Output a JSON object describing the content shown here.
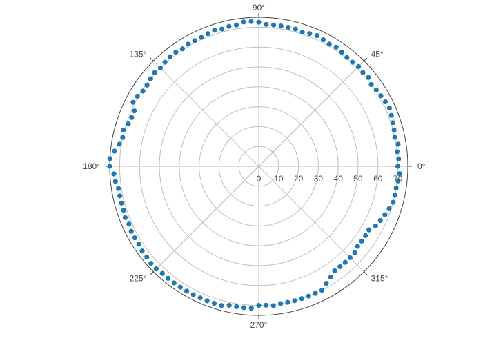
{
  "chart_data": {
    "type": "scatter",
    "projection": "polar",
    "title": "",
    "radial_axis": {
      "range": [
        0,
        75
      ],
      "tick_values": [
        0,
        10,
        20,
        30,
        40,
        50,
        60,
        70
      ],
      "tick_labels": [
        "0",
        "10",
        "20",
        "30",
        "40",
        "50",
        "60",
        "70"
      ],
      "angle_deg": 0
    },
    "angular_axis": {
      "tick_values_deg": [
        0,
        45,
        90,
        135,
        180,
        225,
        270,
        315
      ],
      "tick_labels": [
        "0°",
        "45°",
        "90°",
        "135°",
        "180°",
        "225°",
        "270°",
        "315°"
      ],
      "direction": "counterclockwise",
      "rotation_deg": 0
    },
    "grid": true,
    "legend": "none",
    "marker_color": "#1f77b4",
    "series": [
      {
        "points": [
          [
            0,
            70
          ],
          [
            3,
            70.5
          ],
          [
            6,
            70
          ],
          [
            9,
            71
          ],
          [
            12,
            70
          ],
          [
            15,
            70.5
          ],
          [
            18,
            71
          ],
          [
            21,
            71.5
          ],
          [
            24,
            72
          ],
          [
            27,
            71.5
          ],
          [
            30,
            71
          ],
          [
            33,
            70.5
          ],
          [
            36,
            70
          ],
          [
            39,
            71
          ],
          [
            42,
            70.5
          ],
          [
            45,
            71
          ],
          [
            48,
            70.5
          ],
          [
            51,
            70.5
          ],
          [
            54,
            71
          ],
          [
            57,
            71.5
          ],
          [
            60,
            71
          ],
          [
            63,
            71.5
          ],
          [
            66,
            72
          ],
          [
            69,
            71.5
          ],
          [
            72,
            71
          ],
          [
            75,
            71.5
          ],
          [
            78,
            71.5
          ],
          [
            81,
            71.5
          ],
          [
            84,
            71.5
          ],
          [
            87,
            71.5
          ],
          [
            90,
            72.5
          ],
          [
            93,
            73
          ],
          [
            96,
            73
          ],
          [
            99,
            72
          ],
          [
            102,
            72
          ],
          [
            105,
            71.5
          ],
          [
            108,
            72
          ],
          [
            111,
            71.5
          ],
          [
            114,
            71
          ],
          [
            117,
            71
          ],
          [
            120,
            71
          ],
          [
            123,
            70.5
          ],
          [
            126,
            71
          ],
          [
            129,
            71
          ],
          [
            132,
            70.5
          ],
          [
            135,
            70
          ],
          [
            138,
            70.5
          ],
          [
            141,
            70
          ],
          [
            144,
            69.5
          ],
          [
            147,
            69.5
          ],
          [
            150,
            70.5
          ],
          [
            153,
            71
          ],
          [
            156,
            68.5
          ],
          [
            159,
            68.5
          ],
          [
            162,
            69
          ],
          [
            165,
            70.5
          ],
          [
            168,
            70
          ],
          [
            171,
            71
          ],
          [
            174,
            73
          ],
          [
            177,
            75
          ],
          [
            180,
            75
          ],
          [
            183,
            73
          ],
          [
            186,
            72.5
          ],
          [
            189,
            71.5
          ],
          [
            192,
            71.5
          ],
          [
            195,
            71.5
          ],
          [
            198,
            71.5
          ],
          [
            201,
            72
          ],
          [
            204,
            71.5
          ],
          [
            207,
            72
          ],
          [
            210,
            72
          ],
          [
            213,
            72
          ],
          [
            216,
            72.5
          ],
          [
            219,
            72.5
          ],
          [
            222,
            73
          ],
          [
            225,
            73
          ],
          [
            228,
            72.5
          ],
          [
            231,
            72.5
          ],
          [
            234,
            72.5
          ],
          [
            237,
            72.5
          ],
          [
            240,
            72.5
          ],
          [
            243,
            72.5
          ],
          [
            246,
            72.5
          ],
          [
            249,
            72.5
          ],
          [
            252,
            72.5
          ],
          [
            255,
            72.5
          ],
          [
            258,
            71.5
          ],
          [
            261,
            71.5
          ],
          [
            264,
            71.5
          ],
          [
            267,
            71.5
          ],
          [
            270,
            70
          ],
          [
            273,
            70
          ],
          [
            276,
            70.5
          ],
          [
            279,
            70
          ],
          [
            282,
            70
          ],
          [
            285,
            70
          ],
          [
            288,
            70
          ],
          [
            291,
            70
          ],
          [
            294,
            70
          ],
          [
            297,
            70
          ],
          [
            300,
            68
          ],
          [
            303,
            66.5
          ],
          [
            306,
            65
          ],
          [
            309,
            65
          ],
          [
            312,
            65
          ],
          [
            315,
            65
          ],
          [
            318,
            65
          ],
          [
            321,
            64
          ],
          [
            324,
            64
          ],
          [
            327,
            64
          ],
          [
            330,
            64
          ],
          [
            333,
            66
          ],
          [
            336,
            67
          ],
          [
            339,
            68
          ],
          [
            342,
            69
          ],
          [
            345,
            70
          ],
          [
            348,
            70
          ],
          [
            351,
            70
          ],
          [
            354,
            70.5
          ],
          [
            357,
            71
          ]
        ]
      }
    ]
  }
}
